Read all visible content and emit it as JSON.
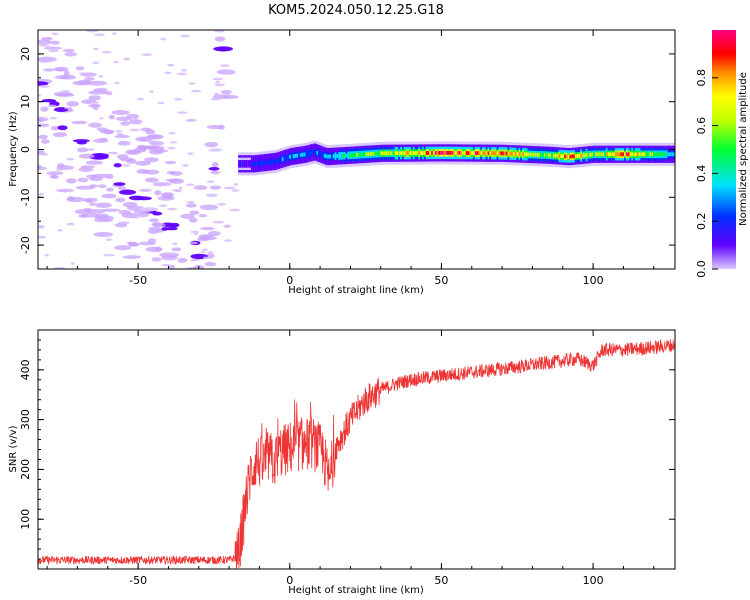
{
  "title": "KOM5.2024.050.12.25.G18",
  "chart_data": [
    {
      "type": "heatmap",
      "xlabel": "Height of straight line (km)",
      "ylabel": "Frequency (Hz)",
      "xlim": [
        -83,
        127
      ],
      "ylim": [
        -25,
        25
      ],
      "xticks": [
        -50,
        0,
        50,
        100
      ],
      "yticks": [
        -20,
        -10,
        0,
        10,
        20
      ],
      "colorbar": {
        "label": "Normalized spectral amplitude",
        "range": [
          0,
          1
        ],
        "ticks": [
          0.0,
          0.2,
          0.4,
          0.6,
          0.8
        ]
      },
      "main_ridge": {
        "x": [
          -17,
          -12,
          -5,
          0,
          5,
          8,
          12,
          20,
          30,
          50,
          70,
          85,
          92,
          100,
          110,
          127
        ],
        "y": [
          -3,
          -3,
          -2.5,
          -1.5,
          -1,
          -0.5,
          -1.5,
          -1.2,
          -0.8,
          -0.7,
          -0.8,
          -1.2,
          -1.5,
          -1.0,
          -1.0,
          -1.0
        ],
        "amplitude": [
          0.2,
          0.25,
          0.3,
          0.35,
          0.4,
          0.3,
          0.35,
          0.55,
          0.65,
          0.95,
          0.85,
          0.6,
          0.95,
          0.6,
          0.9,
          0.4
        ]
      },
      "scatter_track": {
        "x": [
          -82,
          -78,
          -73,
          -68,
          -63,
          -58,
          -52,
          -47,
          -42,
          -37,
          -32,
          -27,
          -22
        ],
        "y": [
          12,
          9,
          5,
          2,
          -1,
          -4,
          -8,
          -11,
          -14,
          -18,
          -21,
          -23,
          23
        ]
      }
    },
    {
      "type": "line",
      "xlabel": "Height of straight line (km)",
      "ylabel": "SNR (v/v)",
      "xlim": [
        -83,
        127
      ],
      "ylim": [
        0,
        480
      ],
      "xticks": [
        -50,
        0,
        50,
        100
      ],
      "yticks": [
        100,
        200,
        300,
        400
      ],
      "series": [
        {
          "color": "#ee3333",
          "x": [
            -83,
            -20,
            -17,
            -15,
            -13,
            -11,
            -9,
            -7,
            -5,
            -3,
            -1,
            1,
            3,
            5,
            7,
            9,
            11,
            13,
            15,
            17,
            20,
            25,
            30,
            35,
            40,
            50,
            60,
            70,
            80,
            90,
            95,
            100,
            103,
            110,
            120,
            127
          ],
          "y": [
            18,
            18,
            25,
            110,
            190,
            220,
            210,
            225,
            215,
            235,
            240,
            245,
            250,
            248,
            255,
            245,
            230,
            175,
            245,
            265,
            300,
            340,
            360,
            372,
            380,
            388,
            395,
            402,
            410,
            418,
            422,
            408,
            440,
            440,
            445,
            450
          ]
        }
      ]
    }
  ],
  "colors": {
    "line": "#ee3333",
    "scatter_fill": "#c8a0ff",
    "colorbar_stops": [
      "#a0a0ff",
      "#0000ff",
      "#00e0ff",
      "#00ff40",
      "#ffff00",
      "#ff8000",
      "#ff0000",
      "#ff0080"
    ]
  }
}
